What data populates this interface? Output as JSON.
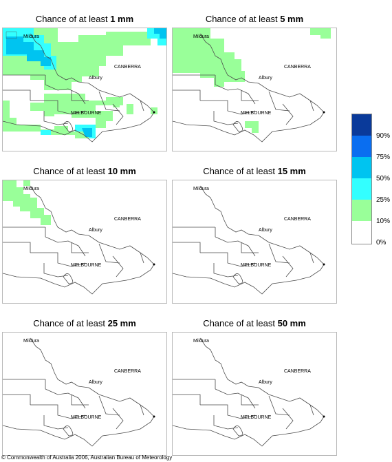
{
  "panels": [
    {
      "title_prefix": "Chance of at least ",
      "amount": "1 mm"
    },
    {
      "title_prefix": "Chance of at least ",
      "amount": "5 mm"
    },
    {
      "title_prefix": "Chance of at least ",
      "amount": "10 mm"
    },
    {
      "title_prefix": "Chance of at least ",
      "amount": "15 mm"
    },
    {
      "title_prefix": "Chance of at least ",
      "amount": "25 mm"
    },
    {
      "title_prefix": "Chance of at least ",
      "amount": "50 mm"
    }
  ],
  "cities": {
    "mildura": "Mildura",
    "canberra": "CANBERRA",
    "albury": "Albury",
    "melbourne": "MELBOURNE"
  },
  "legend": {
    "labels": [
      "90%",
      "75%",
      "50%",
      "25%",
      "10%",
      "0%"
    ],
    "colors": [
      "#0a3a9a",
      "#0a6ef0",
      "#00c4f0",
      "#33ffff",
      "#99ff99",
      "#ffffff"
    ]
  },
  "footer": {
    "copyright": "© Commonwealth of Australia 2006, Australian Bureau of Meteorology"
  }
}
